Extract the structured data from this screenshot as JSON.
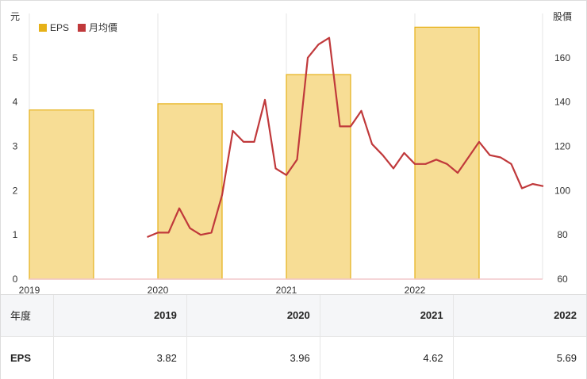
{
  "chart_data": {
    "type": "bar+line",
    "left_axis_unit": "元",
    "right_axis_unit": "股價",
    "left_ylim": [
      0,
      6
    ],
    "left_ticks": [
      0,
      1,
      2,
      3,
      4,
      5
    ],
    "right_ylim": [
      60,
      180
    ],
    "right_ticks": [
      60,
      80,
      100,
      120,
      140,
      160
    ],
    "x_tick_labels": [
      "2019",
      "2020",
      "2021",
      "2022"
    ],
    "legend": [
      {
        "name": "EPS",
        "color": "#e6b118"
      },
      {
        "name": "月均價",
        "color": "#c0393b"
      }
    ],
    "bars": {
      "name": "EPS",
      "categories": [
        "2019",
        "2020",
        "2021",
        "2022"
      ],
      "values": [
        3.82,
        3.96,
        4.62,
        5.69
      ],
      "fill": "#f7dd95",
      "stroke": "#e6b118"
    },
    "line": {
      "name": "月均價",
      "color": "#c0393b",
      "points": [
        {
          "x": "2019-12",
          "y": 79
        },
        {
          "x": "2020-01",
          "y": 81
        },
        {
          "x": "2020-02",
          "y": 81
        },
        {
          "x": "2020-03",
          "y": 92
        },
        {
          "x": "2020-04",
          "y": 83
        },
        {
          "x": "2020-05",
          "y": 80
        },
        {
          "x": "2020-06",
          "y": 81
        },
        {
          "x": "2020-07",
          "y": 98
        },
        {
          "x": "2020-08",
          "y": 127
        },
        {
          "x": "2020-09",
          "y": 122
        },
        {
          "x": "2020-10",
          "y": 122
        },
        {
          "x": "2020-11",
          "y": 141
        },
        {
          "x": "2020-12",
          "y": 110
        },
        {
          "x": "2021-01",
          "y": 107
        },
        {
          "x": "2021-02",
          "y": 114
        },
        {
          "x": "2021-03",
          "y": 160
        },
        {
          "x": "2021-04",
          "y": 166
        },
        {
          "x": "2021-05",
          "y": 169
        },
        {
          "x": "2021-06",
          "y": 129
        },
        {
          "x": "2021-07",
          "y": 129
        },
        {
          "x": "2021-08",
          "y": 136
        },
        {
          "x": "2021-09",
          "y": 121
        },
        {
          "x": "2021-10",
          "y": 116
        },
        {
          "x": "2021-11",
          "y": 110
        },
        {
          "x": "2021-12",
          "y": 117
        },
        {
          "x": "2022-01",
          "y": 112
        },
        {
          "x": "2022-02",
          "y": 112
        },
        {
          "x": "2022-03",
          "y": 114
        },
        {
          "x": "2022-04",
          "y": 112
        },
        {
          "x": "2022-05",
          "y": 108
        },
        {
          "x": "2022-06",
          "y": 115
        },
        {
          "x": "2022-07",
          "y": 122
        },
        {
          "x": "2022-08",
          "y": 116
        },
        {
          "x": "2022-09",
          "y": 115
        },
        {
          "x": "2022-10",
          "y": 112
        },
        {
          "x": "2022-11",
          "y": 101
        },
        {
          "x": "2022-12",
          "y": 103
        },
        {
          "x": "2023-01",
          "y": 102
        }
      ]
    },
    "grid": true
  },
  "table": {
    "header_label": "年度",
    "columns": [
      "2019",
      "2020",
      "2021",
      "2022"
    ],
    "row_label": "EPS",
    "values": [
      "3.82",
      "3.96",
      "4.62",
      "5.69"
    ]
  }
}
